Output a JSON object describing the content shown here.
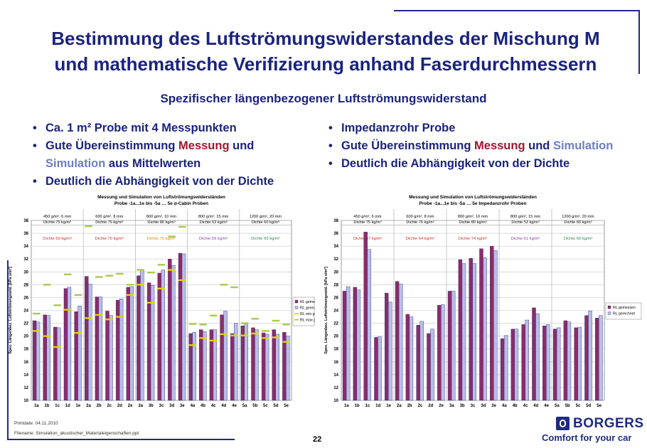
{
  "slide": {
    "title_line1": "Bestimmung des Luftströmungswiderstandes der Mischung M",
    "title_line2": "und mathematische Verifizierung anhand Faserdurchmessern",
    "subtitle": "Spezifischer längenbezogener Luftströmungswiderstand",
    "left_bullets": [
      [
        {
          "t": "Ca. 1 m² Probe mit 4 Messpunkten",
          "c": ""
        }
      ],
      [
        {
          "t": "Gute Übereinstimmung ",
          "c": ""
        },
        {
          "t": "Messung",
          "c": "mess"
        },
        {
          "t": " und ",
          "c": ""
        },
        {
          "t": "Simulation",
          "c": "sim"
        },
        {
          "t": " aus Mittelwerten",
          "c": ""
        }
      ],
      [
        {
          "t": "Deutlich die Abhängigkeit von der Dichte",
          "c": ""
        }
      ]
    ],
    "right_bullets": [
      [
        {
          "t": "Impedanzrohr Probe",
          "c": ""
        }
      ],
      [
        {
          "t": "Gute Übereinstimmung ",
          "c": ""
        },
        {
          "t": "Messung",
          "c": "mess"
        },
        {
          "t": " und ",
          "c": ""
        },
        {
          "t": "Simulation",
          "c": "sim"
        }
      ],
      [
        {
          "t": "Deutlich die Abhängigkeit von der Dichte",
          "c": ""
        }
      ]
    ],
    "footer": {
      "printdate": "Printdate: 04.11.2010",
      "filename": "Filename: Simulation_akustischer_Materialeigenschaften.ppt",
      "page": "22",
      "logo": "BORGERS",
      "slogan": "Comfort for your car"
    },
    "colors": {
      "text": "#1a237e",
      "messung": "#a3162f",
      "simulation": "#6b7fc4"
    }
  },
  "chart_data": [
    {
      "type": "bar",
      "title": "Messung und Simulation von Luftströmungswiderständen",
      "subtitle": "Probe -1a...1e bis -5a … 5e α-Cabin Proben",
      "ylabel": "Spez. Längenbez. Luftströmungswid. [kPa s/m²]",
      "xlabel": "",
      "ylim": [
        10,
        38
      ],
      "yticks": [
        10,
        12,
        14,
        16,
        18,
        20,
        22,
        24,
        26,
        28,
        30,
        32,
        34,
        36,
        38
      ],
      "grid": true,
      "legend": "right",
      "categories": [
        "1a",
        "1b",
        "1c",
        "1d",
        "1e",
        "2a",
        "2b",
        "2c",
        "2d",
        "2e",
        "3a",
        "3b",
        "3c",
        "3d",
        "3e",
        "4a",
        "4b",
        "4c",
        "4d",
        "4e",
        "5a",
        "5b",
        "5c",
        "5d",
        "5e"
      ],
      "groups": [
        {
          "header1": "450 g/m², 6 mm",
          "header2": "Dichte 75 kg/m³",
          "label": "Dichte 69 kg/m³",
          "label_color": "#c0392b"
        },
        {
          "header1": "600 g/m², 8 mm",
          "header2": "Dichte 75 kg/m³",
          "label": "Dichte 70 kg/m³",
          "label_color": "#c0392b"
        },
        {
          "header1": "800 g/m², 10 mm",
          "header2": "Dichte 80 kg/m³",
          "label": "Dichte 75 kg/m³",
          "label_color": "#e08a00"
        },
        {
          "header1": "800 g/m², 15 mm",
          "header2": "Dichte 53 kg/m³",
          "label": "Dichte 59 kg/m³",
          "label_color": "#8e44ad"
        },
        {
          "header1": "1200 g/m², 20 mm",
          "header2": "Dichte 60 kg/m³",
          "label": "Dichte 60 kg/m³",
          "label_color": "#2e8b57"
        }
      ],
      "series": [
        {
          "name": "RL gemessen",
          "kind": "bar",
          "color": "#8b2c6a",
          "values": [
            22.4,
            23.3,
            21.4,
            27.4,
            23.8,
            29.3,
            26.1,
            23.9,
            25.6,
            27.6,
            29.4,
            28.3,
            29.8,
            32.0,
            32.9,
            20.4,
            21.0,
            21.0,
            23.3,
            20.4,
            21.6,
            21.3,
            20.5,
            21.0,
            20.6
          ]
        },
        {
          "name": "RL gerechnet",
          "kind": "bar",
          "color": "#b9bde8",
          "values": [
            22.2,
            23.2,
            21.3,
            27.6,
            24.7,
            28.1,
            26.1,
            23.2,
            25.8,
            27.7,
            30.3,
            27.9,
            30.3,
            31.0,
            32.8,
            20.6,
            20.7,
            21.0,
            23.9,
            22.0,
            22.0,
            21.0,
            20.3,
            20.3,
            20.0
          ]
        },
        {
          "name": "RL min gem",
          "kind": "dash",
          "color": "#e6d200",
          "values": [
            20.8,
            20.0,
            18.3,
            24.1,
            20.5,
            22.8,
            23.3,
            22.6,
            23.0,
            26.4,
            28.0,
            25.2,
            27.4,
            30.3,
            28.7,
            18.6,
            19.7,
            19.3,
            20.3,
            20.1,
            20.1,
            20.4,
            19.7,
            19.8,
            19.1
          ]
        },
        {
          "name": "RL max gem",
          "kind": "dash",
          "color": "#a8c94a",
          "values": [
            23.5,
            28.0,
            24.8,
            29.6,
            26.4,
            37.1,
            29.2,
            29.4,
            29.7,
            28.0,
            30.3,
            29.9,
            31.1,
            35.5,
            37.0,
            21.9,
            21.8,
            23.2,
            28.0,
            27.6,
            22.0,
            22.7,
            20.8,
            22.4,
            21.8
          ]
        }
      ]
    },
    {
      "type": "bar",
      "title": "Messung und Simulation von Luftströmungswiderständen",
      "subtitle": "Probe -1a...1e bis -5a … 5e Impedanzrohr Proben",
      "ylabel": "Spez. Längenbez. Luftströmungswid. [kPa s/m²]",
      "xlabel": "",
      "ylim": [
        10,
        38
      ],
      "yticks": [
        10,
        12,
        14,
        16,
        18,
        20,
        22,
        24,
        26,
        28,
        30,
        32,
        34,
        36,
        38
      ],
      "grid": true,
      "legend": "right",
      "categories": [
        "1a",
        "1b",
        "1c",
        "1d",
        "1e",
        "2a",
        "2b",
        "2c",
        "2d",
        "2e",
        "3a",
        "3b",
        "3c",
        "3d",
        "3e",
        "4a",
        "4b",
        "4c",
        "4d",
        "4e",
        "5a",
        "5b",
        "5c",
        "5d",
        "5e"
      ],
      "groups": [
        {
          "header1": "450 g/m², 6 mm",
          "header2": "Dichte 75 kg/m³",
          "label": "Dichte 67 kg/m³",
          "label_color": "#c0392b"
        },
        {
          "header1": "600 g/m², 8 mm",
          "header2": "Dichte 75 kg/m³",
          "label": "Dichte 64 kg/m³",
          "label_color": "#c0392b"
        },
        {
          "header1": "800 g/m², 10 mm",
          "header2": "Dichte 80 kg/m³",
          "label": "Dichte 74 kg/m³",
          "label_color": "#c0392b"
        },
        {
          "header1": "800 g/m², 15 mm",
          "header2": "Dichte 53 kg/m³",
          "label": "Dichte 61 kg/m³",
          "label_color": "#8e44ad"
        },
        {
          "header1": "1200 g/m², 20 mm",
          "header2": "Dichte 60 kg/m³",
          "label": "Dichte 60 kg/m³",
          "label_color": "#2e8b57"
        }
      ],
      "series": [
        {
          "name": "RL gemessen",
          "kind": "bar",
          "color": "#8b2c6a",
          "values": [
            27.0,
            27.6,
            36.2,
            19.8,
            26.7,
            28.5,
            23.4,
            21.7,
            20.4,
            24.8,
            27.0,
            31.9,
            32.1,
            33.6,
            34.0,
            19.6,
            21.1,
            21.8,
            24.4,
            21.6,
            21.1,
            22.4,
            21.3,
            23.2,
            22.8
          ]
        },
        {
          "name": "RL gerechnet",
          "kind": "bar",
          "color": "#b9bde8",
          "values": [
            27.7,
            27.2,
            33.5,
            19.9,
            25.3,
            28.1,
            23.0,
            22.3,
            21.1,
            24.9,
            27.0,
            31.3,
            31.3,
            32.2,
            33.3,
            20.1,
            21.1,
            22.5,
            23.5,
            21.8,
            21.3,
            22.2,
            21.4,
            23.9,
            23.2
          ]
        }
      ]
    }
  ]
}
